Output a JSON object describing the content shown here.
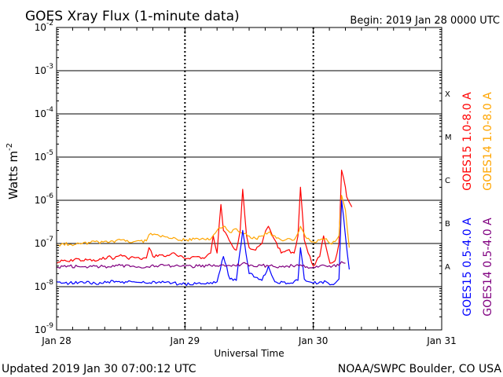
{
  "header": {
    "title": "GOES Xray Flux (1-minute data)",
    "begin": "Begin:  2019 Jan 28 0000 UTC"
  },
  "footer": {
    "updated": "Updated 2019 Jan 30 07:00:12 UTC",
    "credit": "NOAA/SWPC Boulder, CO USA"
  },
  "chart_data": {
    "type": "line",
    "title": "GOES Xray Flux (1-minute data)",
    "xlabel": "Universal Time",
    "ylabel": "Watts m",
    "ylabel_exponent": "-2",
    "y_scale": "log",
    "ylim": [
      1e-09,
      0.01
    ],
    "x_range_days": [
      0,
      3
    ],
    "x_ticks": [
      {
        "day": 0,
        "label": "Jan 28"
      },
      {
        "day": 1,
        "label": "Jan 29"
      },
      {
        "day": 2,
        "label": "Jan 30"
      },
      {
        "day": 3,
        "label": "Jan 31"
      }
    ],
    "y_ticks": [
      {
        "base": "10",
        "exp": "-9",
        "value": 1e-09
      },
      {
        "base": "10",
        "exp": "-8",
        "value": 1e-08
      },
      {
        "base": "10",
        "exp": "-7",
        "value": 1e-07
      },
      {
        "base": "10",
        "exp": "-6",
        "value": 1e-06
      },
      {
        "base": "10",
        "exp": "-5",
        "value": 1e-05
      },
      {
        "base": "10",
        "exp": "-4",
        "value": 0.0001
      },
      {
        "base": "10",
        "exp": "-3",
        "value": 0.001
      },
      {
        "base": "10",
        "exp": "-2",
        "value": 0.01
      }
    ],
    "flare_classes": [
      {
        "label": "A",
        "value": 3e-08
      },
      {
        "label": "B",
        "value": 3e-07
      },
      {
        "label": "C",
        "value": 3e-06
      },
      {
        "label": "M",
        "value": 3e-05
      },
      {
        "label": "X",
        "value": 0.0003
      }
    ],
    "grid": "horizontal lines at each decade, dashed vertical lines at day boundaries",
    "legend_position": "right, vertical",
    "series": [
      {
        "name": "GOES15 1.0-8.0 A",
        "color": "#ff0000",
        "x": [
          0,
          0.05,
          0.1,
          0.15,
          0.2,
          0.25,
          0.3,
          0.35,
          0.4,
          0.45,
          0.5,
          0.55,
          0.6,
          0.65,
          0.7,
          0.72,
          0.75,
          0.8,
          0.85,
          0.9,
          0.95,
          1.0,
          1.05,
          1.1,
          1.15,
          1.2,
          1.22,
          1.25,
          1.28,
          1.3,
          1.33,
          1.36,
          1.4,
          1.43,
          1.45,
          1.48,
          1.5,
          1.55,
          1.6,
          1.63,
          1.65,
          1.7,
          1.75,
          1.8,
          1.85,
          1.88,
          1.9,
          1.93,
          1.96,
          2.0,
          2.05,
          2.08,
          2.1,
          2.13,
          2.17,
          2.2,
          2.22,
          2.25,
          2.26,
          2.28,
          2.3
        ],
        "y": [
          3.5e-08,
          4e-08,
          3.8e-08,
          4.5e-08,
          4e-08,
          4.2e-08,
          3.9e-08,
          4.3e-08,
          5e-08,
          4.5e-08,
          5.5e-08,
          4.6e-08,
          4.8e-08,
          4.4e-08,
          4.6e-08,
          8e-08,
          5e-08,
          5.5e-08,
          5e-08,
          6e-08,
          5e-08,
          4.5e-08,
          4.8e-08,
          5e-08,
          4.5e-08,
          6e-08,
          1.5e-07,
          6e-08,
          8e-07,
          2e-07,
          1.5e-07,
          1e-07,
          7e-08,
          2e-07,
          1.8e-06,
          1.5e-07,
          8e-08,
          7e-08,
          1e-07,
          2e-07,
          2.5e-07,
          1.2e-07,
          6e-08,
          7e-08,
          6e-08,
          1.5e-07,
          2e-06,
          1.2e-07,
          6e-08,
          3e-08,
          5e-08,
          1.5e-07,
          8e-08,
          3.5e-08,
          4e-08,
          1e-07,
          5e-06,
          2e-06,
          1.2e-06,
          9e-07,
          7e-07
        ]
      },
      {
        "name": "GOES14 1.0-8.0 A",
        "color": "#ffa500",
        "x": [
          0,
          0.05,
          0.1,
          0.2,
          0.3,
          0.4,
          0.5,
          0.6,
          0.7,
          0.72,
          0.8,
          0.9,
          1.0,
          1.1,
          1.2,
          1.25,
          1.3,
          1.35,
          1.4,
          1.45,
          1.5,
          1.55,
          1.6,
          1.65,
          1.7,
          1.75,
          1.8,
          1.85,
          1.9,
          1.95,
          2.0,
          2.05,
          2.1,
          2.13,
          2.17,
          2.2,
          2.22,
          2.25,
          2.28
        ],
        "y": [
          9e-08,
          1e-07,
          9.5e-08,
          1e-07,
          1.1e-07,
          1.05e-07,
          1.2e-07,
          1.1e-07,
          1.15e-07,
          1.6e-07,
          1.5e-07,
          1.3e-07,
          1.2e-07,
          1.3e-07,
          1.25e-07,
          2e-07,
          2.5e-07,
          1.8e-07,
          2.2e-07,
          1.7e-07,
          1.5e-07,
          1.3e-07,
          1.5e-07,
          1.8e-07,
          1.5e-07,
          1.2e-07,
          1.3e-07,
          1.2e-07,
          2.5e-07,
          1.3e-07,
          1.1e-07,
          1.2e-07,
          1.3e-07,
          1e-07,
          1.1e-07,
          1.5e-07,
          1.3e-06,
          6e-07,
          8e-08
        ]
      },
      {
        "name": "GOES15 0.5-4.0 A",
        "color": "#0000ff",
        "x": [
          0,
          0.1,
          0.2,
          0.3,
          0.4,
          0.5,
          0.6,
          0.7,
          0.8,
          0.9,
          1.0,
          1.1,
          1.2,
          1.25,
          1.3,
          1.35,
          1.4,
          1.45,
          1.5,
          1.6,
          1.65,
          1.7,
          1.8,
          1.88,
          1.9,
          1.93,
          2.0,
          2.1,
          2.13,
          2.17,
          2.2,
          2.22,
          2.25,
          2.28
        ],
        "y": [
          1.3e-08,
          1.2e-08,
          1.3e-08,
          1.2e-08,
          1.3e-08,
          1.25e-08,
          1.3e-08,
          1.2e-08,
          1.3e-08,
          1.2e-08,
          1.15e-08,
          1.2e-08,
          1.25e-08,
          1.3e-08,
          5e-08,
          1.5e-08,
          1.4e-08,
          2e-07,
          2e-08,
          1.4e-08,
          3e-08,
          1.3e-08,
          1.2e-08,
          1.4e-08,
          8e-08,
          1.5e-08,
          1.2e-08,
          1.3e-08,
          1.1e-08,
          1.2e-08,
          1.5e-08,
          1e-06,
          1.5e-07,
          2.5e-08
        ]
      },
      {
        "name": "GOES14 0.5-4.0 A",
        "color": "#800080",
        "x": [
          0,
          0.1,
          0.2,
          0.3,
          0.4,
          0.5,
          0.6,
          0.7,
          0.8,
          0.9,
          1.0,
          1.1,
          1.2,
          1.3,
          1.4,
          1.45,
          1.5,
          1.6,
          1.7,
          1.8,
          1.9,
          1.95,
          2.0,
          2.1,
          2.2,
          2.22,
          2.25
        ],
        "y": [
          2.8e-08,
          3e-08,
          2.9e-08,
          3e-08,
          2.9e-08,
          3.1e-08,
          3e-08,
          2.9e-08,
          3.1e-08,
          3e-08,
          2.9e-08,
          3e-08,
          3.1e-08,
          3.2e-08,
          3e-08,
          3.5e-08,
          3e-08,
          3.1e-08,
          2.9e-08,
          3e-08,
          3.2e-08,
          2.9e-08,
          2.8e-08,
          3e-08,
          3.1e-08,
          3.8e-08,
          3.5e-08
        ]
      }
    ]
  }
}
